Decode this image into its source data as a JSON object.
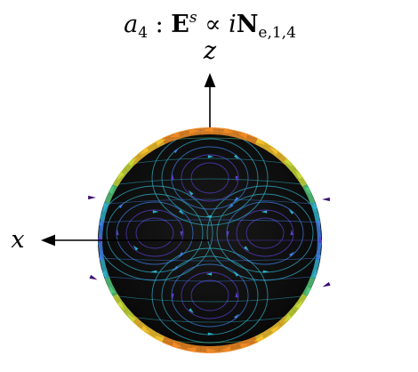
{
  "title": {
    "mode": "a",
    "mode_sub": "4",
    "sep": " : ",
    "field": "E",
    "field_sup": "s",
    "relation": " ∝ ",
    "coef": "i",
    "basis": "N",
    "basis_sub": "e,1,4"
  },
  "axes": {
    "z_label": "z",
    "x_label": "x"
  },
  "colors": {
    "sphere": "#0b0b0b",
    "stream_colormap": [
      "#3b0f70",
      "#5a3fd1",
      "#3e7fe0",
      "#2fb0c8",
      "#54c77a",
      "#c9d93a",
      "#f2c12e",
      "#f08a24"
    ],
    "axis": "#000000"
  }
}
